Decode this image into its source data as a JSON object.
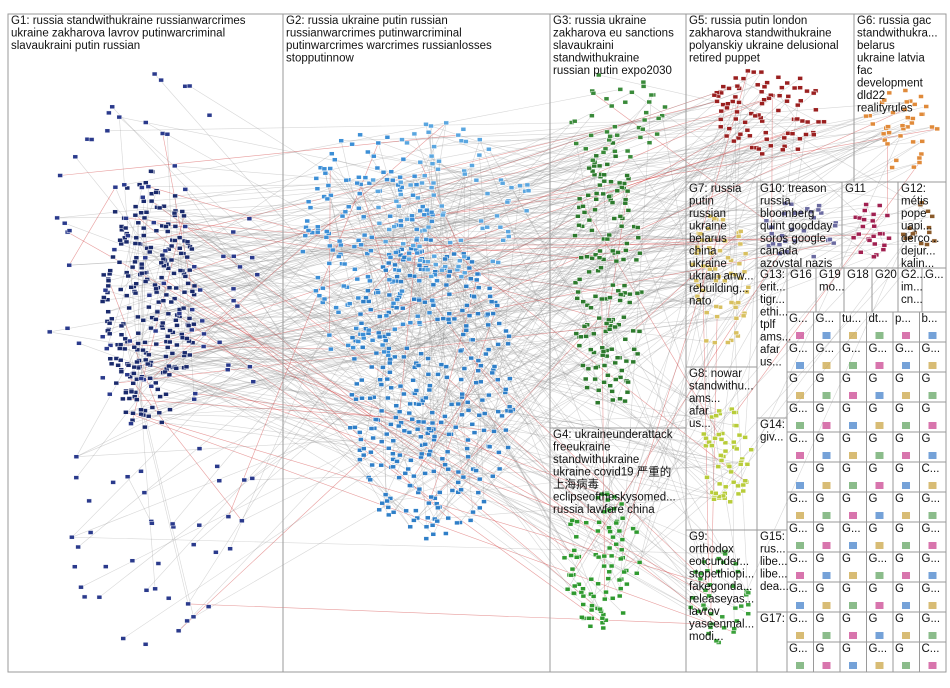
{
  "groups": [
    {
      "label_lines": [
        "G1: russia standwithukraine russianwarcrimes",
        "ukraine zakharova lavrov putinwarcriminal",
        "slavaukraini putin russian"
      ]
    },
    {
      "label_lines": [
        "G2: russia ukraine putin russian",
        "russianwarcrimes putinwarcriminal",
        "putinwarcrimes warcrimes russianlosses",
        "stopputinnow"
      ]
    },
    {
      "label_lines": [
        "G3: russia ukraine",
        "zakharova eu sanctions",
        "slavaukraini",
        "standwithukraine",
        "russian putin expo2030"
      ]
    },
    {
      "label_lines": [
        "G4: ukraineunderattack",
        "freeukraine",
        "standwithukraine",
        "ukraine covid19 严重的",
        "上海病毒",
        "eclipseoftheskysomed...",
        "russia lawfare china"
      ]
    },
    {
      "label_lines": [
        "G5: russia putin london",
        "zakharova standwithukraine",
        "polyanskiy ukraine delusional",
        "retired puppet"
      ]
    },
    {
      "label_lines": [
        "G6: russia gac",
        "standwithukra...",
        "belarus",
        "ukraine latvia",
        "fac",
        "development",
        "dld22",
        "realityrules"
      ]
    },
    {
      "label_lines": [
        "G7: russia",
        "putin",
        "russian",
        "ukraine",
        "belarus",
        "china",
        "ukraine",
        "ukrain anw...",
        "rebuilding...",
        "nato"
      ]
    },
    {
      "label_lines": [
        "G10: treason",
        "russia",
        "bloomberg",
        "quint goodday",
        "soros google",
        "canada",
        "azovstal nazis"
      ]
    },
    {
      "label_lines": [
        "G11"
      ]
    },
    {
      "label_lines": [
        "G12:",
        "métis",
        "pope",
        "uapi...",
        "derco...",
        "dejur...",
        "kalin..."
      ]
    },
    {
      "label_lines": [
        "G13:",
        "erit...",
        "tigr...",
        "ethi...",
        "tplf",
        "ams...",
        "afar",
        "us..."
      ]
    },
    {
      "label_lines": [
        "G16"
      ]
    },
    {
      "label_lines": [
        "G19",
        "mo..."
      ]
    },
    {
      "label_lines": [
        "G18"
      ]
    },
    {
      "label_lines": [
        "G20"
      ]
    },
    {
      "label_lines": [
        "G2...",
        "im...",
        "cn..."
      ]
    },
    {
      "label_lines": [
        "G..."
      ]
    },
    {
      "label_lines": [
        "G8: nowar",
        "standwithu...",
        "ams...",
        "afar",
        "us..."
      ]
    },
    {
      "label_lines": [
        "G14:",
        "giv..."
      ]
    },
    {
      "label_lines": [
        "G9:",
        "orthodox",
        "eotcunder...",
        "stopethiopi...",
        "fakegonda...",
        "releaseyas...",
        "lavrov",
        "yaseenmal...",
        "modi..."
      ]
    },
    {
      "label_lines": [
        "G15:",
        "rus...",
        "libe...",
        "libe...",
        "dea..."
      ]
    },
    {
      "label_lines": [
        "G17:"
      ]
    }
  ],
  "small_groups": [
    "G...",
    "G...",
    "tu...",
    "dt...",
    "p...",
    "b...",
    "G...",
    "G...",
    "G...",
    "G...",
    "G...",
    "G...",
    "G",
    "G",
    "G",
    "G",
    "G",
    "G",
    "G...",
    "G",
    "G",
    "G",
    "G",
    "G",
    "G...",
    "G",
    "G",
    "G",
    "G",
    "G",
    "G",
    "G",
    "G",
    "G",
    "G",
    "C...",
    "G...",
    "G",
    "G",
    "G",
    "G",
    "G...",
    "G...",
    "G",
    "G...",
    "G",
    "G",
    "G...",
    "G...",
    "G",
    "G",
    "G...",
    "G",
    "G...",
    "G...",
    "G",
    "G",
    "G",
    "G",
    "G...",
    "G...",
    "G",
    "G",
    "G",
    "G",
    "G...",
    "G...",
    "G",
    "G",
    "G...",
    "G",
    "C..."
  ]
}
